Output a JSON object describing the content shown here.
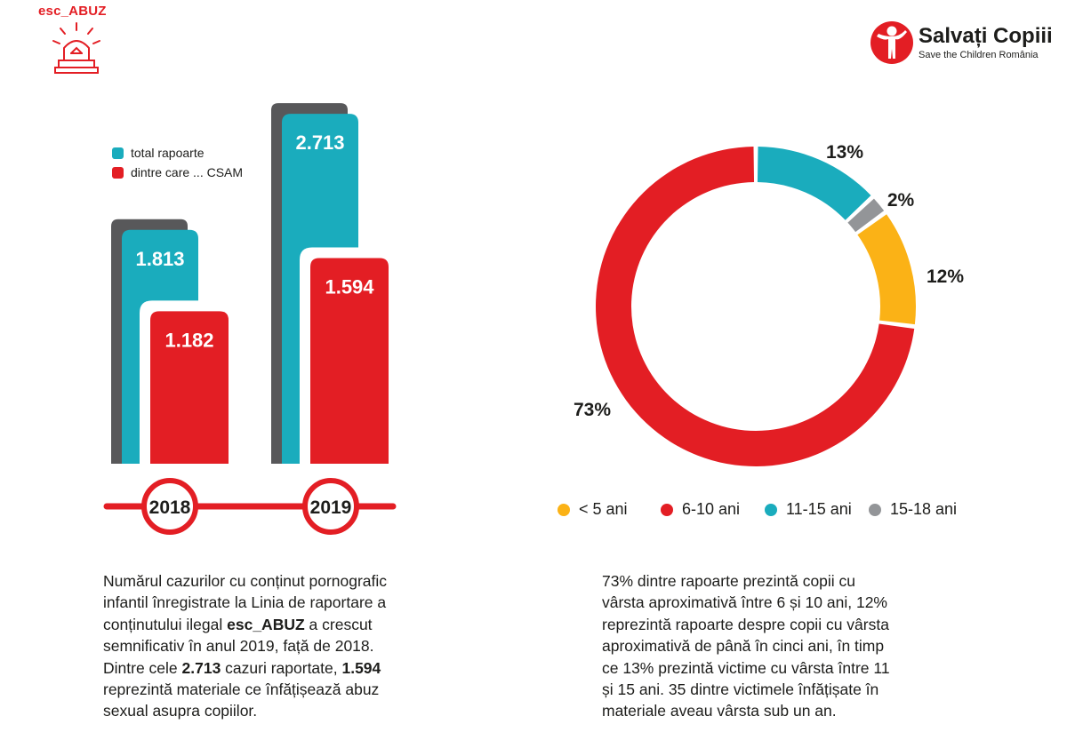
{
  "logo_left": {
    "label": "esc_ABUZ"
  },
  "logo_right": {
    "name": "Salvați Copiii",
    "subtitle": "Save the Children România"
  },
  "bar_legend": [
    {
      "label": "total rapoarte",
      "color": "#1aacbd"
    },
    {
      "label": "dintre care ... CSAM",
      "color": "#e31e24"
    }
  ],
  "chart_data": [
    {
      "type": "bar",
      "categories": [
        "2018",
        "2019"
      ],
      "series": [
        {
          "name": "total rapoarte",
          "values": [
            1813,
            2713
          ],
          "labels": [
            "1.813",
            "2.713"
          ],
          "color": "#1aacbd"
        },
        {
          "name": "dintre care ... CSAM",
          "values": [
            1182,
            1594
          ],
          "labels": [
            "1.182",
            "1.594"
          ],
          "color": "#e31e24"
        }
      ],
      "shadow_color": "#58585a"
    },
    {
      "type": "pie",
      "donut": true,
      "slices": [
        {
          "label": "11-15 ani",
          "value": 13,
          "text": "13%",
          "color": "#1aacbd"
        },
        {
          "label": "15-18 ani",
          "value": 2,
          "text": "2%",
          "color": "#939598"
        },
        {
          "label": "< 5 ani",
          "value": 12,
          "text": "12%",
          "color": "#fbb216"
        },
        {
          "label": "6-10 ani",
          "value": 73,
          "text": "73%",
          "color": "#e31e24"
        }
      ],
      "legend_order": [
        "< 5 ani",
        "6-10 ani",
        "11-15 ani",
        "15-18 ani"
      ]
    }
  ],
  "text_left": {
    "p1": "Numărul cazurilor cu conținut pornografic",
    "p2": "infantil înregistrate la Linia de raportare a",
    "p3a": "conținutului ilegal ",
    "p3b": "esc_ABUZ",
    "p3c": " a crescut",
    "p4": "semnificativ în anul 2019, față de 2018.",
    "p5a": "Dintre cele ",
    "p5b": "2.713",
    "p5c": " cazuri raportate, ",
    "p5d": "1.594",
    "p6": "reprezintă materiale ce înfățișează abuz",
    "p7": "sexual asupra copiilor."
  },
  "text_right": [
    "73% dintre rapoarte prezintă copii cu",
    "vârsta aproximativă între 6 și 10 ani, 12%",
    "reprezintă rapoarte despre copii cu vârsta",
    "aproximativă de până în cinci ani, în timp",
    "ce 13% prezintă victime cu vârsta între 11",
    "și 15 ani. 35 dintre victimele înfățișate în",
    "materiale aveau vârsta sub un an."
  ]
}
